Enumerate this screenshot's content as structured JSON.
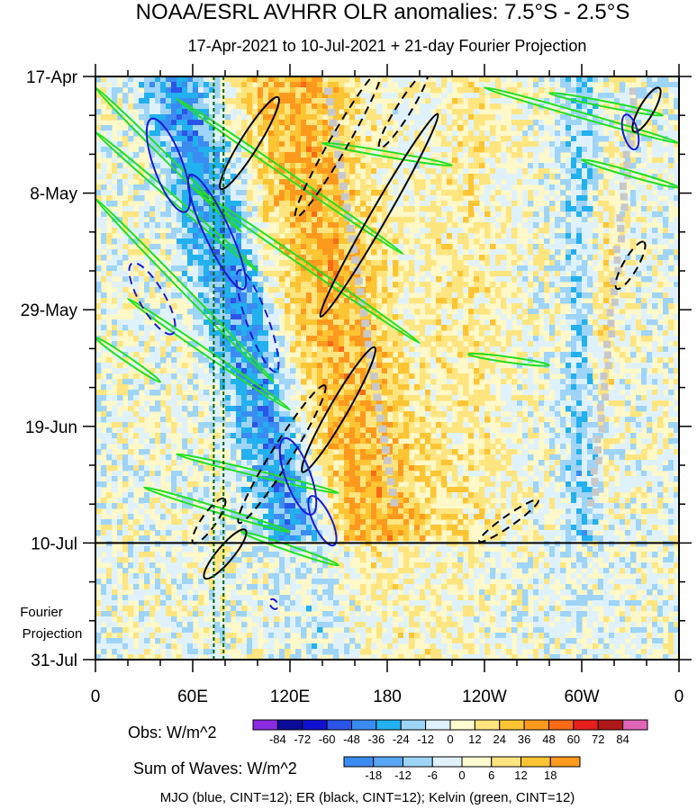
{
  "chart_data": {
    "type": "heatmap",
    "title": "NOAA/ESRL AVHRR OLR anomalies: 7.5°S - 2.5°S",
    "subtitle": "17-Apr-2021 to 10-Jul-2021 + 21-day Fourier Projection",
    "x_ticks": [
      {
        "lon": 0,
        "label": "0"
      },
      {
        "lon": 60,
        "label": "60E"
      },
      {
        "lon": 120,
        "label": "120E"
      },
      {
        "lon": 180,
        "label": "180"
      },
      {
        "lon": 240,
        "label": "120W"
      },
      {
        "lon": 300,
        "label": "60W"
      },
      {
        "lon": 360,
        "label": "0"
      }
    ],
    "xlim": [
      0,
      360
    ],
    "y_day_range": [
      0,
      105
    ],
    "y_ticks": [
      {
        "day": 0,
        "label": "17-Apr"
      },
      {
        "day": 21,
        "label": "8-May"
      },
      {
        "day": 42,
        "label": "29-May"
      },
      {
        "day": 63,
        "label": "19-Jun"
      },
      {
        "day": 84,
        "label": "10-Jul"
      },
      {
        "day": 105,
        "label": "31-Jul"
      }
    ],
    "projection_start_day": 84,
    "projection_label_line1": "Fourier",
    "projection_label_line2": "Projection",
    "reference_lines_lon": [
      73,
      79
    ],
    "obs_colorbar": {
      "label": "Obs: W/m^2",
      "levels": [
        "-84",
        "-72",
        "-60",
        "-48",
        "-36",
        "-24",
        "-12",
        "0",
        "12",
        "24",
        "36",
        "48",
        "60",
        "72",
        "84"
      ],
      "colors": [
        "#8a2be2",
        "#0b0b9a",
        "#1010d0",
        "#2a55e6",
        "#3b8cf2",
        "#22b0ee",
        "#9ed4f8",
        "#dff2fc",
        "#fffbd0",
        "#ffe57f",
        "#fdc433",
        "#fd9a1e",
        "#f96a17",
        "#e5201c",
        "#b01818",
        "#e066b8"
      ]
    },
    "waves_colorbar": {
      "label": "Sum of Waves: W/m^2",
      "levels": [
        "-18",
        "-12",
        "-6",
        "0",
        "6",
        "12",
        "18"
      ],
      "colors": [
        "#3b8cf2",
        "#59a6f5",
        "#9ed4f8",
        "#dff2fc",
        "#fffbd0",
        "#ffe57f",
        "#fdc433",
        "#fd9a1e"
      ]
    },
    "contour_legend": "MJO (blue, CINT=12); ER (black, CINT=12); Kelvin (green, CINT=12)",
    "series_colors": {
      "mjo": "#1a1ad4",
      "er": "#000000",
      "kelvin": "#22e022"
    }
  }
}
